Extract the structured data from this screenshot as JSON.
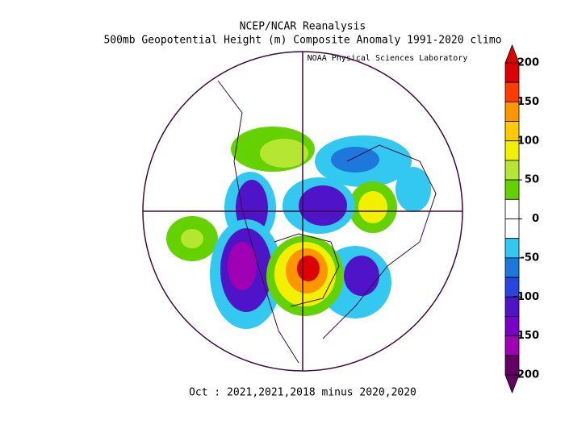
{
  "header": {
    "title": "NCEP/NCAR Reanalysis",
    "subtitle": "500mb Geopotential Height (m) Composite Anomaly 1991-2020 climo",
    "credit": "NOAA Physical Sciences Laboratory"
  },
  "footer": "Oct : 2021,2021,2018 minus 2020,2020",
  "colorbar": {
    "lim": [
      -200,
      200
    ],
    "ticks": [
      200,
      150,
      100,
      50,
      0,
      -50,
      -100,
      -150,
      -200
    ],
    "colors": [
      "#dc0000",
      "#ff3c00",
      "#ff9600",
      "#ffc800",
      "#f0f000",
      "#b4e632",
      "#64d200",
      "#ffffff",
      "#ffffff",
      "#32c8f0",
      "#1e78dc",
      "#2846dc",
      "#5014c8",
      "#7800c8",
      "#a000b4",
      "#640064"
    ]
  }
}
